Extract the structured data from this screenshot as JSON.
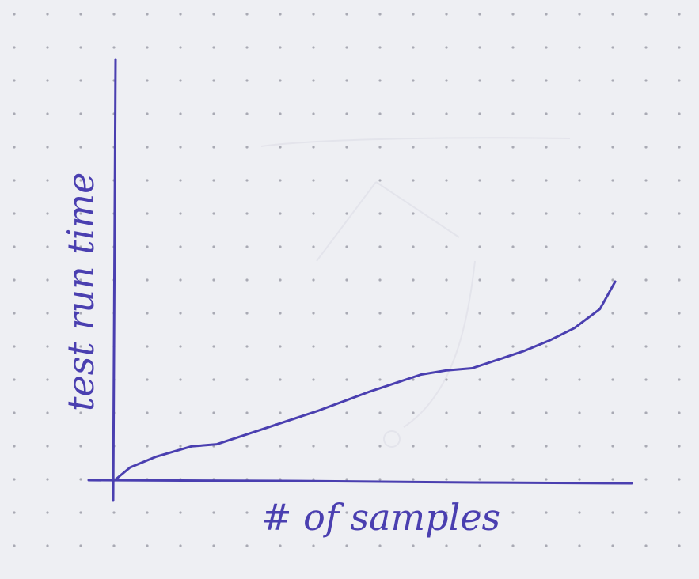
{
  "chart_data": {
    "type": "line",
    "xlabel": "# of samples",
    "ylabel": "test run time",
    "xlim": [
      0,
      10
    ],
    "ylim": [
      0,
      10
    ],
    "grid": false,
    "ink_color": "#4a3fb0",
    "series": [
      {
        "x": [
          0,
          0.3,
          0.8,
          1.5,
          2.0,
          2.5,
          3.0,
          4.0,
          5.0,
          5.5,
          6.0,
          6.5,
          7.0,
          7.5,
          8.0,
          8.5,
          9.0,
          9.5,
          9.8
        ],
        "y": [
          0,
          0.6,
          1.1,
          1.6,
          1.7,
          2.1,
          2.5,
          3.3,
          4.2,
          4.6,
          5.0,
          5.2,
          5.3,
          5.7,
          6.1,
          6.6,
          7.2,
          8.1,
          9.4
        ]
      }
    ]
  }
}
